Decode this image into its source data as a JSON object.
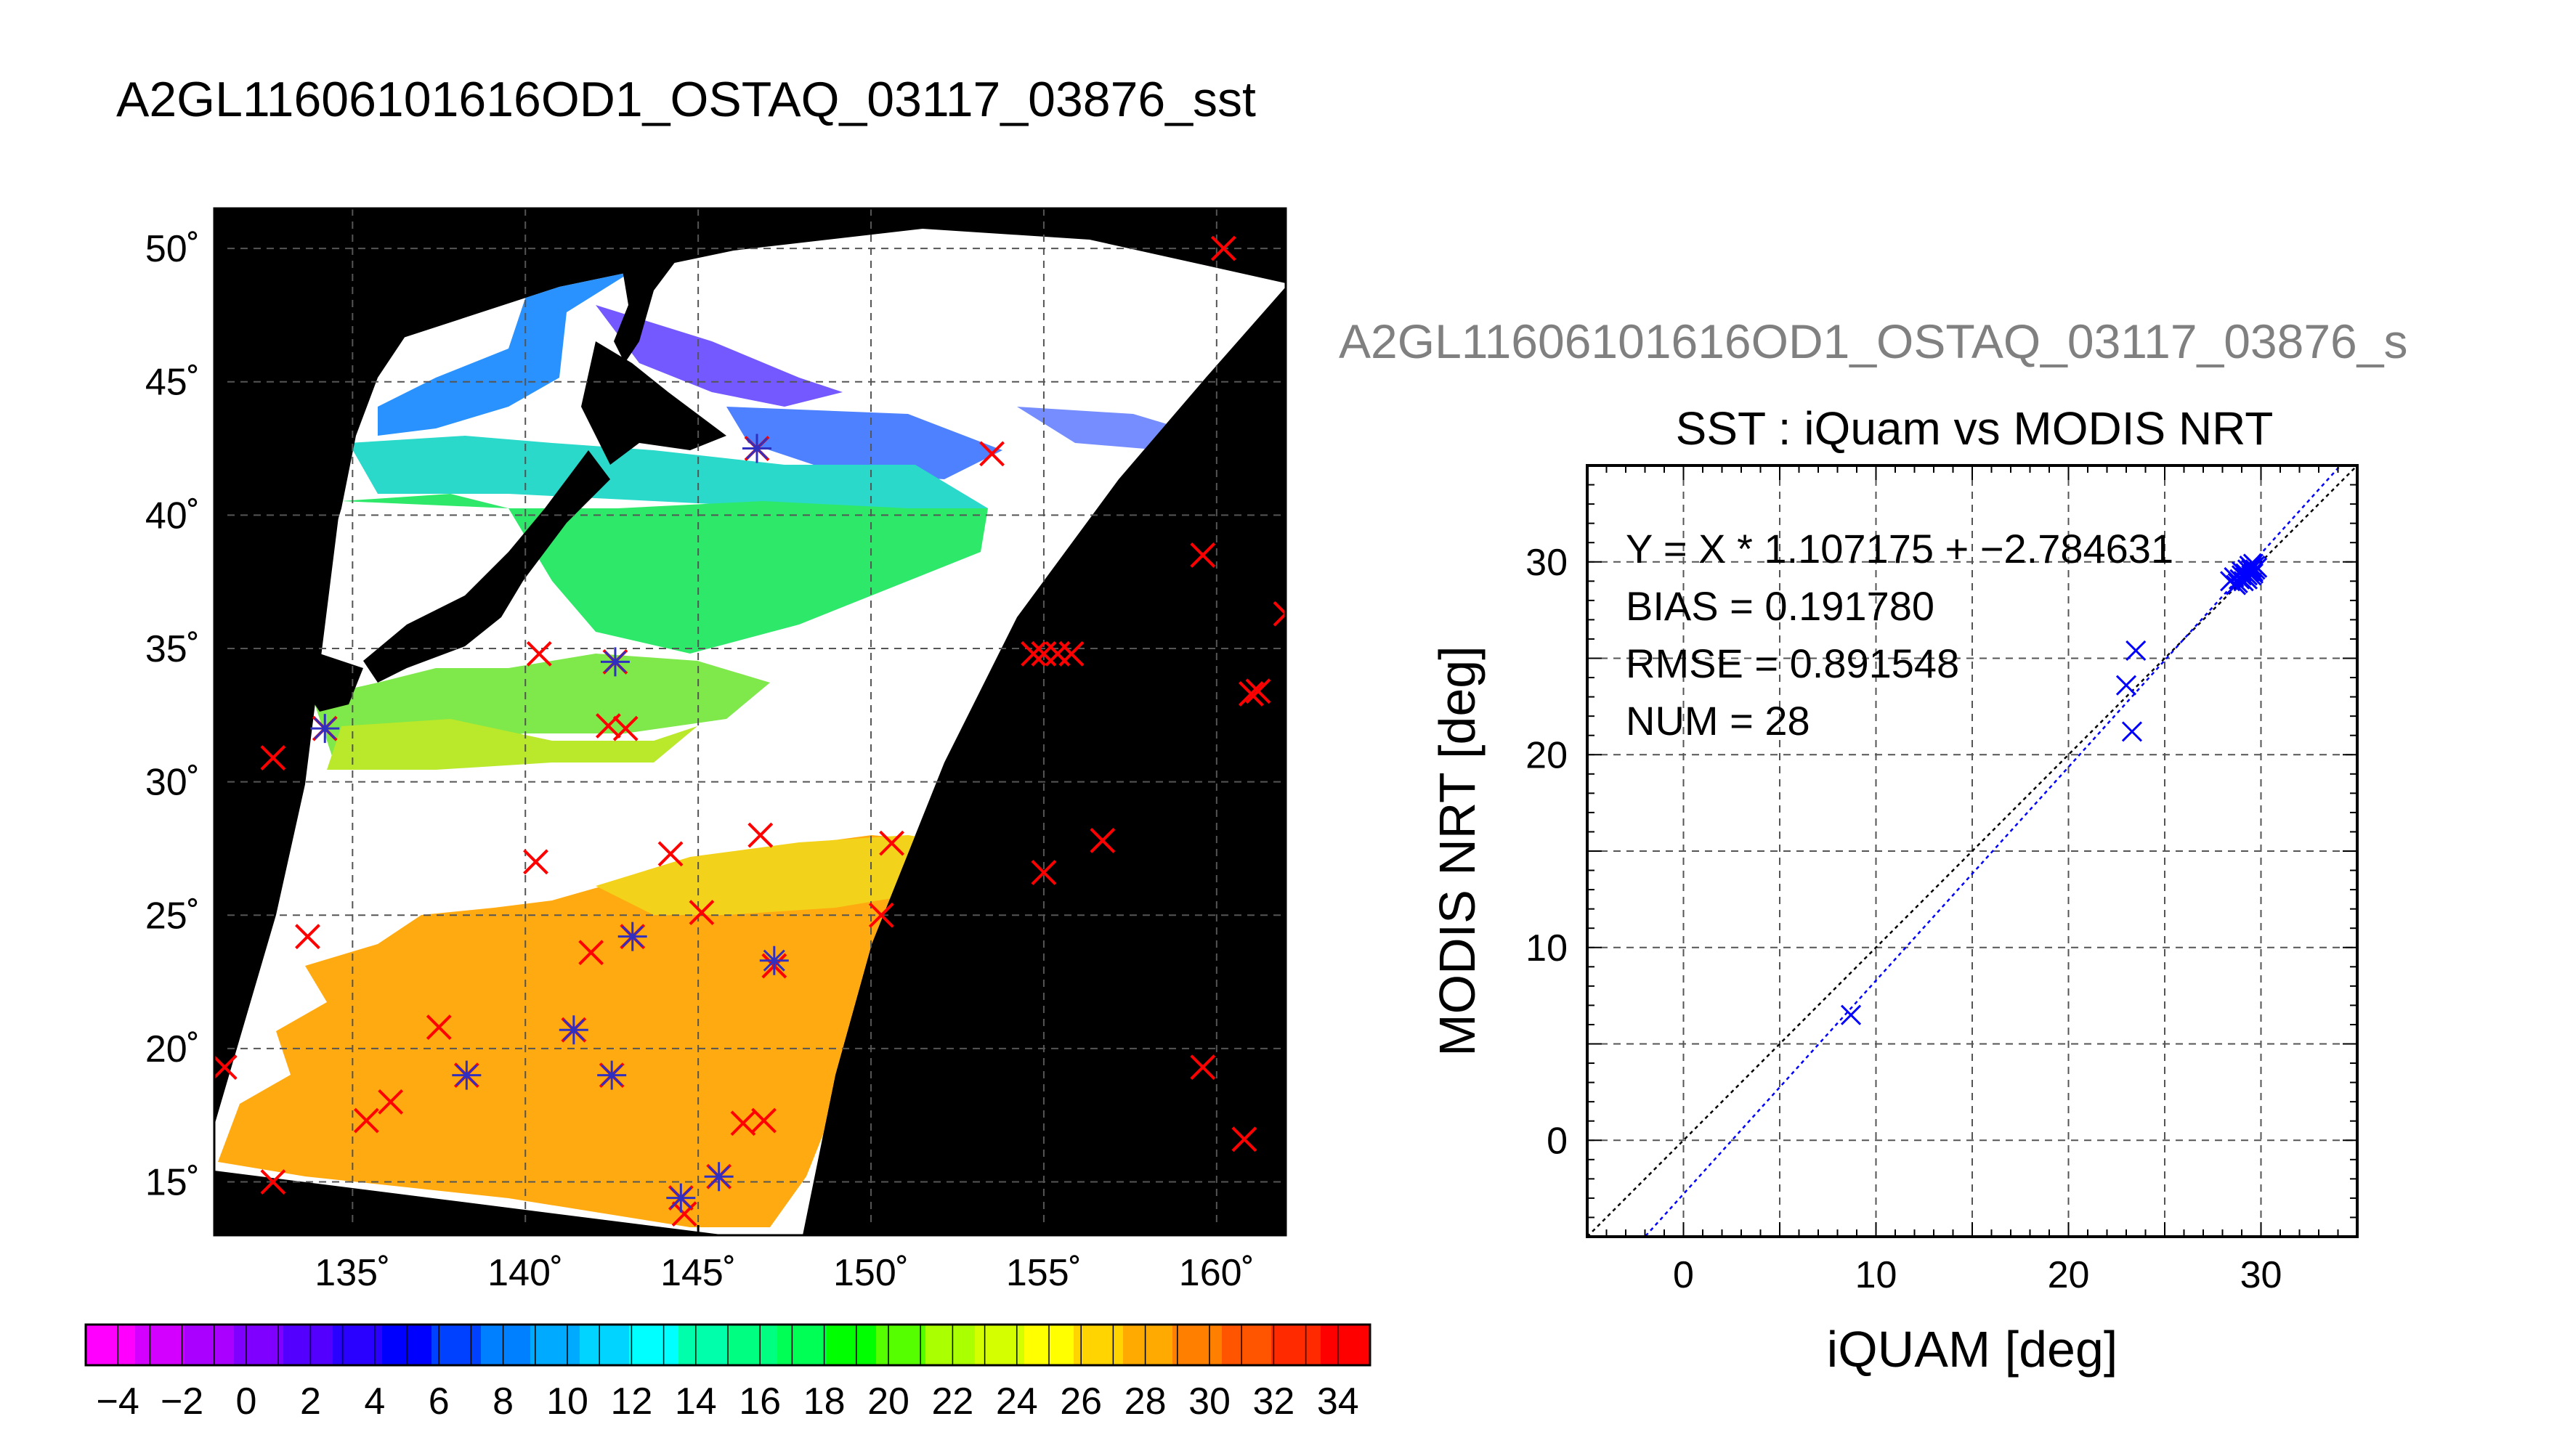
{
  "main_title": "A2GL11606101616OD1_OSTAQ_03117_03876_sst",
  "chart_data": [
    {
      "type": "map",
      "title": "A2GL11606101616OD1_OSTAQ_03117_03876_sst",
      "x_ticks": [
        "135˚",
        "140˚",
        "145˚",
        "150˚",
        "155˚",
        "160˚"
      ],
      "x_tick_values": [
        135,
        140,
        145,
        150,
        155,
        160
      ],
      "y_ticks": [
        "50˚",
        "45˚",
        "40˚",
        "35˚",
        "30˚",
        "25˚",
        "20˚",
        "15˚"
      ],
      "y_tick_values": [
        50,
        45,
        40,
        35,
        30,
        25,
        20,
        15
      ],
      "xlim": [
        131,
        162
      ],
      "ylim": [
        13,
        51.5
      ],
      "grid": true,
      "markers": {
        "red_crosses": [
          [
            160.2,
            50
          ],
          [
            153.5,
            42.3
          ],
          [
            159.6,
            38.5
          ],
          [
            162,
            36.3
          ],
          [
            146.7,
            42.5
          ],
          [
            140.4,
            34.8
          ],
          [
            142.6,
            34.5
          ],
          [
            142.4,
            32.1
          ],
          [
            142.9,
            32
          ],
          [
            134.2,
            32
          ],
          [
            132.7,
            30.9
          ],
          [
            133.7,
            24.2
          ],
          [
            155,
            34.8
          ],
          [
            154.7,
            34.8
          ],
          [
            155.4,
            34.8
          ],
          [
            155.8,
            34.8
          ],
          [
            161,
            33.3
          ],
          [
            161.2,
            33.4
          ],
          [
            140.3,
            27
          ],
          [
            144.2,
            27.3
          ],
          [
            146.8,
            28
          ],
          [
            150.6,
            27.7
          ],
          [
            156.7,
            27.8
          ],
          [
            155,
            26.6
          ],
          [
            150.3,
            25
          ],
          [
            145.1,
            25.1
          ],
          [
            143.1,
            24.2
          ],
          [
            141.9,
            23.6
          ],
          [
            147.2,
            23.1
          ],
          [
            137.5,
            20.8
          ],
          [
            141.4,
            20.7
          ],
          [
            138.3,
            19
          ],
          [
            142.5,
            19
          ],
          [
            131.3,
            19.3
          ],
          [
            159.6,
            19.3
          ],
          [
            136.1,
            18
          ],
          [
            135.4,
            17.3
          ],
          [
            146.3,
            17.2
          ],
          [
            146.9,
            17.3
          ],
          [
            160.8,
            16.6
          ],
          [
            132.7,
            15
          ],
          [
            144.5,
            14.4
          ],
          [
            144.6,
            13.8
          ],
          [
            145.6,
            15.2
          ]
        ],
        "blue_asterisks": [
          [
            146.7,
            42.5
          ],
          [
            142.6,
            34.5
          ],
          [
            134.2,
            32
          ],
          [
            143.1,
            24.2
          ],
          [
            147.2,
            23.3
          ],
          [
            141.4,
            20.7
          ],
          [
            138.3,
            19
          ],
          [
            142.5,
            19
          ],
          [
            144.5,
            14.4
          ],
          [
            145.6,
            15.2
          ]
        ]
      },
      "colorbar": {
        "ticks": [
          "−4",
          "−2",
          "0",
          "2",
          "4",
          "6",
          "8",
          "10",
          "12",
          "14",
          "16",
          "18",
          "20",
          "22",
          "24",
          "26",
          "28",
          "30",
          "32",
          "34"
        ],
        "min": -5,
        "max": 35,
        "colors": [
          "#ff00ff",
          "#d400ff",
          "#aa00ff",
          "#7f00ff",
          "#5400ff",
          "#2a00ff",
          "#0000ff",
          "#0040ff",
          "#0080ff",
          "#00aaff",
          "#00d4ff",
          "#00ffff",
          "#00ffaa",
          "#00ff80",
          "#00ff55",
          "#00ff00",
          "#55ff00",
          "#aaff00",
          "#d4ff00",
          "#ffff00",
          "#ffd400",
          "#ffaa00",
          "#ff8000",
          "#ff5500",
          "#ff2a00",
          "#ff0000"
        ]
      }
    },
    {
      "type": "scatter",
      "file_title": "A2GL11606101616OD1_OSTAQ_03117_03876_s",
      "title": "SST : iQuam vs MODIS NRT",
      "xlabel": "iQUAM [deg]",
      "ylabel": "MODIS NRT [deg]",
      "xlim": [
        -5,
        35
      ],
      "ylim": [
        -5,
        35
      ],
      "x_ticks": [
        "0",
        "10",
        "20",
        "30"
      ],
      "x_tick_values": [
        0,
        10,
        20,
        30
      ],
      "y_ticks": [
        "0",
        "10",
        "20",
        "30"
      ],
      "y_tick_values": [
        0,
        10,
        20,
        30
      ],
      "grid": true,
      "annotations": [
        "Y = X * 1.107175 + −2.784631",
        "BIAS = 0.191780",
        "RMSE = 0.891548",
        "NUM = 28"
      ],
      "fit": {
        "slope": 1.107175,
        "intercept": -2.784631
      },
      "points": [
        [
          8.7,
          6.5
        ],
        [
          23.0,
          23.6
        ],
        [
          23.3,
          21.2
        ],
        [
          23.5,
          25.4
        ],
        [
          28.4,
          29.0
        ],
        [
          28.6,
          29.2
        ],
        [
          28.8,
          28.9
        ],
        [
          28.9,
          29.1
        ],
        [
          29.0,
          29.3
        ],
        [
          29.1,
          29.0
        ],
        [
          29.2,
          29.4
        ],
        [
          29.2,
          29.2
        ],
        [
          29.3,
          29.6
        ],
        [
          29.3,
          29.1
        ],
        [
          29.4,
          29.5
        ],
        [
          29.4,
          29.8
        ],
        [
          29.5,
          29.3
        ],
        [
          29.5,
          29.6
        ],
        [
          29.5,
          29.7
        ],
        [
          29.6,
          29.5
        ],
        [
          29.6,
          29.9
        ],
        [
          29.7,
          29.6
        ],
        [
          29.7,
          29.8
        ],
        [
          29.8,
          29.7
        ],
        [
          28.7,
          28.8
        ],
        [
          29.0,
          29.5
        ],
        [
          29.3,
          29.3
        ],
        [
          29.6,
          29.4
        ]
      ],
      "colors": {
        "points": "#0000ff",
        "fit_line": "#0000ff",
        "identity_line": "#000000"
      }
    }
  ]
}
